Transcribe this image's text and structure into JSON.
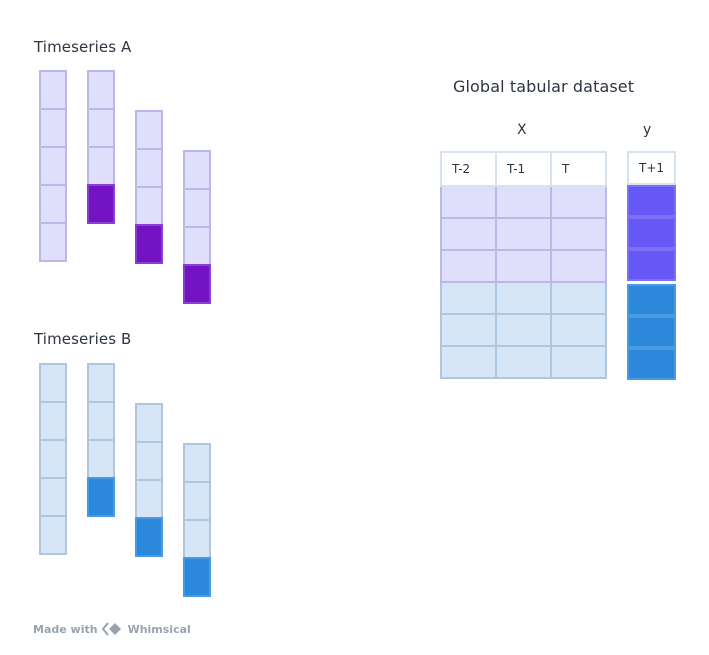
{
  "timeseries_a": {
    "title": "Timeseries A",
    "colors": {
      "light": "#dfdefb",
      "target": "#7313c2"
    },
    "windows": [
      {
        "cells": 5,
        "target_index": null
      },
      {
        "cells": 4,
        "target_index": 3
      },
      {
        "cells": 4,
        "target_index": 3
      },
      {
        "cells": 4,
        "target_index": 3
      }
    ]
  },
  "timeseries_b": {
    "title": "Timeseries B",
    "colors": {
      "light": "#d6e6f6",
      "target": "#2b88db"
    },
    "windows": [
      {
        "cells": 5,
        "target_index": null
      },
      {
        "cells": 4,
        "target_index": 3
      },
      {
        "cells": 4,
        "target_index": 3
      },
      {
        "cells": 4,
        "target_index": 3
      }
    ]
  },
  "dataset": {
    "title": "Global tabular dataset",
    "x_label": "X",
    "y_label": "y",
    "x_headers": [
      "T-2",
      "T-1",
      "T"
    ],
    "y_header": "T+1",
    "rows_a": 3,
    "rows_b": 3
  },
  "footer": {
    "made_with": "Made with",
    "brand": "Whimsical"
  }
}
